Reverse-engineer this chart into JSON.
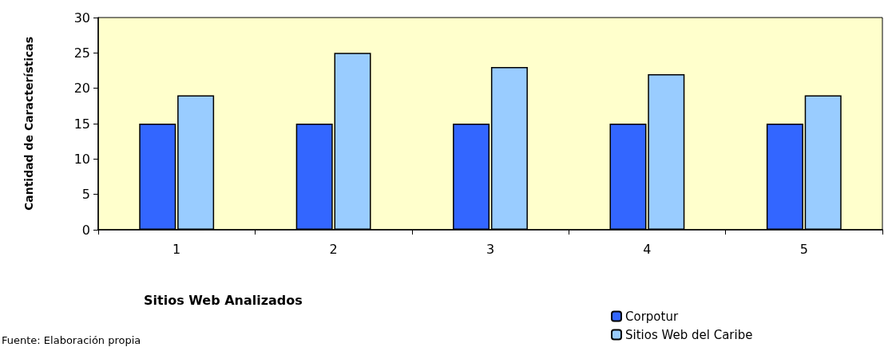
{
  "chart_data": {
    "type": "bar",
    "xlabel": "Sitios Web Analizados",
    "ylabel": "Cantidad de Características",
    "categories": [
      "1",
      "2",
      "3",
      "4",
      "5"
    ],
    "series": [
      {
        "name": "Corpotur",
        "color": "#3366ff",
        "values": [
          15,
          15,
          15,
          15,
          15
        ]
      },
      {
        "name": "Sitios Web del Caribe",
        "color": "#99ccff",
        "values": [
          19,
          25,
          23,
          22,
          19
        ]
      }
    ],
    "ylim": [
      0,
      30
    ],
    "yticks": [
      0,
      5,
      10,
      15,
      20,
      25,
      30
    ],
    "grid": false,
    "legend": "bottom right",
    "annotations": [
      "Fuente: Elaboración propia"
    ]
  }
}
